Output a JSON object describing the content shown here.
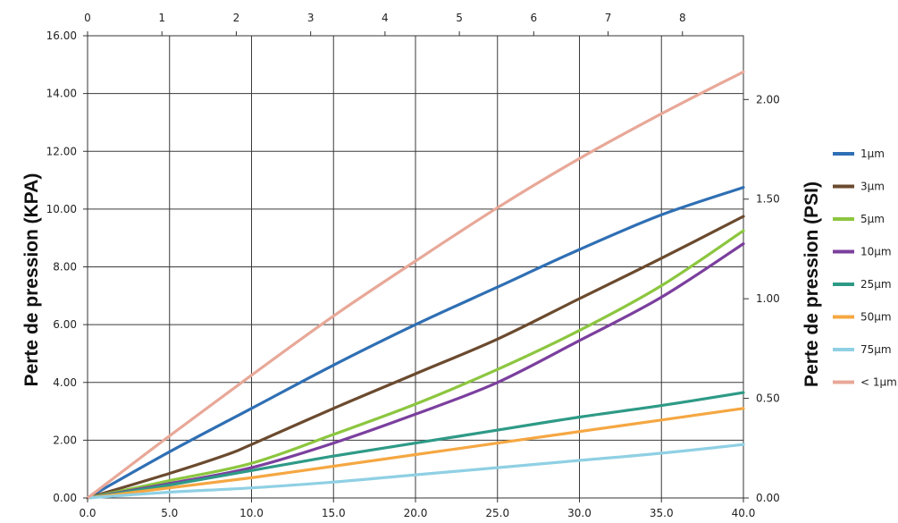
{
  "chart_data": {
    "type": "line",
    "ylabel_left": "Perte de pression (KPA)",
    "ylabel_right": "Perte de pression (PSI)",
    "x_bottom": {
      "range": [
        0,
        40
      ],
      "ticks": [
        "0.0",
        "5.0",
        "10.0",
        "15.0",
        "20.0",
        "25.0",
        "30.0",
        "35.0",
        "40.0"
      ]
    },
    "x_top": {
      "range": [
        0,
        8.82
      ],
      "ticks": [
        "0",
        "1",
        "2",
        "3",
        "4",
        "5",
        "6",
        "7",
        "8"
      ]
    },
    "y_left": {
      "range": [
        0,
        16
      ],
      "ticks": [
        "0.00",
        "2.00",
        "4.00",
        "6.00",
        "8.00",
        "10.00",
        "12.00",
        "14.00",
        "16.00"
      ]
    },
    "y_right": {
      "range": [
        0,
        2.32
      ],
      "ticks": [
        "0.00",
        "0.50",
        "1.00",
        "1.50",
        "2.00"
      ]
    },
    "grid": true,
    "legend_position": "right",
    "series": [
      {
        "name": "1µm",
        "color": "#2f6fb4",
        "points": [
          [
            0,
            0
          ],
          [
            5,
            1.6
          ],
          [
            10,
            3.1
          ],
          [
            15,
            4.6
          ],
          [
            20,
            6.0
          ],
          [
            25,
            7.3
          ],
          [
            30,
            8.6
          ],
          [
            35,
            9.8
          ],
          [
            40,
            10.75
          ]
        ]
      },
      {
        "name": "3µm",
        "color": "#6b4a2e",
        "points": [
          [
            0,
            0
          ],
          [
            5,
            0.85
          ],
          [
            8.5,
            1.5
          ],
          [
            10,
            1.85
          ],
          [
            15,
            3.1
          ],
          [
            20,
            4.3
          ],
          [
            25,
            5.5
          ],
          [
            30,
            6.9
          ],
          [
            35,
            8.3
          ],
          [
            40,
            9.75
          ]
        ]
      },
      {
        "name": "5µm",
        "color": "#8cc63f",
        "points": [
          [
            0,
            0
          ],
          [
            5,
            0.6
          ],
          [
            10,
            1.2
          ],
          [
            15,
            2.2
          ],
          [
            20,
            3.25
          ],
          [
            25,
            4.45
          ],
          [
            30,
            5.8
          ],
          [
            35,
            7.35
          ],
          [
            40,
            9.25
          ]
        ]
      },
      {
        "name": "10µm",
        "color": "#7b3f9e",
        "points": [
          [
            0,
            0
          ],
          [
            5,
            0.5
          ],
          [
            10,
            1.05
          ],
          [
            15,
            1.9
          ],
          [
            20,
            2.9
          ],
          [
            25,
            4.0
          ],
          [
            30,
            5.45
          ],
          [
            35,
            6.95
          ],
          [
            40,
            8.8
          ]
        ]
      },
      {
        "name": "25µm",
        "color": "#2e9a86",
        "points": [
          [
            0,
            0
          ],
          [
            5,
            0.45
          ],
          [
            10,
            0.95
          ],
          [
            15,
            1.45
          ],
          [
            20,
            1.9
          ],
          [
            25,
            2.35
          ],
          [
            30,
            2.8
          ],
          [
            35,
            3.2
          ],
          [
            40,
            3.65
          ]
        ]
      },
      {
        "name": "50µm",
        "color": "#f5a742",
        "points": [
          [
            0,
            0
          ],
          [
            5,
            0.35
          ],
          [
            10,
            0.7
          ],
          [
            15,
            1.1
          ],
          [
            20,
            1.5
          ],
          [
            25,
            1.9
          ],
          [
            30,
            2.3
          ],
          [
            35,
            2.7
          ],
          [
            40,
            3.1
          ]
        ]
      },
      {
        "name": "75µm",
        "color": "#8fd0e4",
        "points": [
          [
            0,
            0
          ],
          [
            5,
            0.2
          ],
          [
            10,
            0.35
          ],
          [
            15,
            0.55
          ],
          [
            20,
            0.8
          ],
          [
            25,
            1.05
          ],
          [
            30,
            1.3
          ],
          [
            35,
            1.55
          ],
          [
            40,
            1.85
          ]
        ]
      },
      {
        "name": "< 1µm",
        "color": "#e8a898",
        "points": [
          [
            0,
            0
          ],
          [
            5,
            2.15
          ],
          [
            10,
            4.25
          ],
          [
            15,
            6.3
          ],
          [
            20,
            8.2
          ],
          [
            25,
            10.05
          ],
          [
            30,
            11.75
          ],
          [
            35,
            13.3
          ],
          [
            40,
            14.75
          ]
        ]
      }
    ]
  }
}
